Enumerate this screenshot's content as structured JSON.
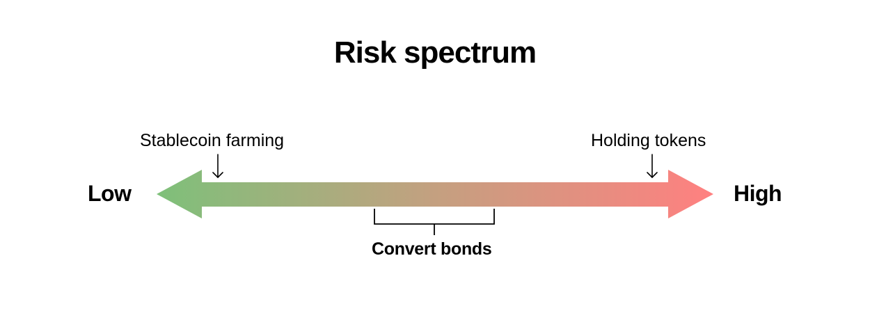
{
  "title": "Risk spectrum",
  "scale": {
    "low_label": "Low",
    "high_label": "High",
    "low_color": "#7ec07a",
    "mid_color": "#c4a080",
    "high_color": "#ff8080"
  },
  "markers": [
    {
      "label": "Stablecoin farming",
      "position": 0.11
    },
    {
      "label": "Holding tokens",
      "position": 0.89
    }
  ],
  "ranges": [
    {
      "label": "Convert bonds",
      "start": 0.39,
      "end": 0.61
    }
  ]
}
